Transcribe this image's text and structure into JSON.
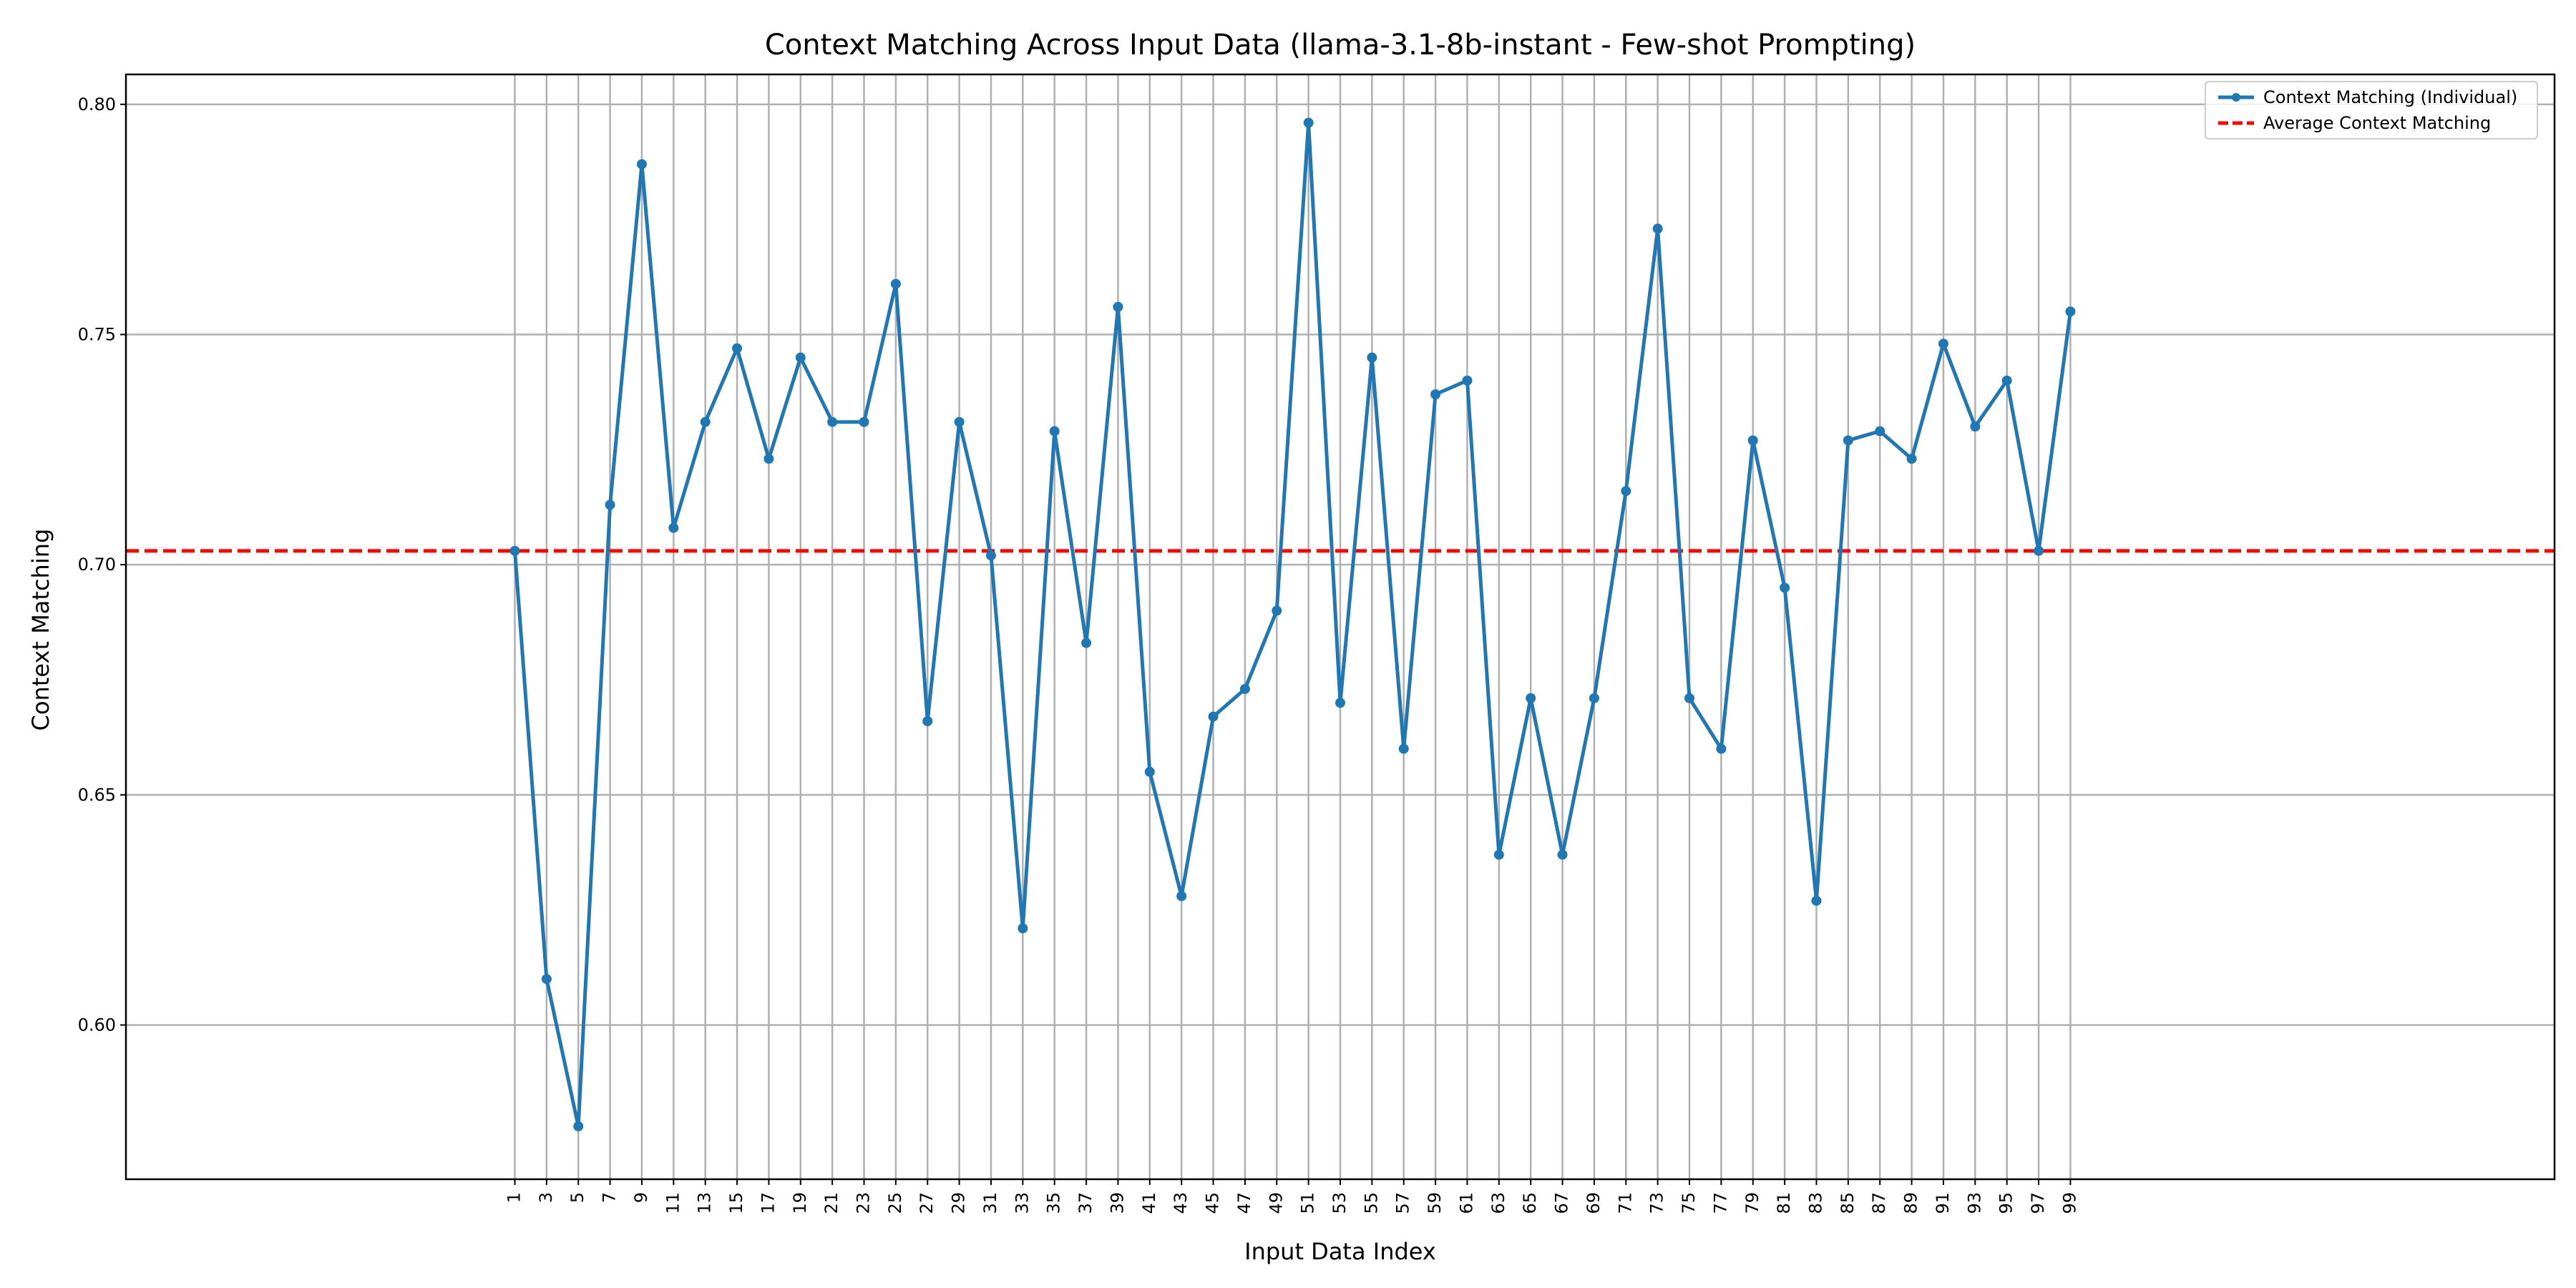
{
  "chart_data": {
    "type": "line",
    "title": "Context Matching Across Input Data (llama-3.1-8b-instant - Few-shot Prompting)",
    "xlabel": "Input Data Index",
    "ylabel": "Context Matching",
    "x": [
      1,
      3,
      5,
      7,
      9,
      11,
      13,
      15,
      17,
      19,
      21,
      23,
      25,
      27,
      29,
      31,
      33,
      35,
      37,
      39,
      41,
      43,
      45,
      47,
      49,
      51,
      53,
      55,
      57,
      59,
      61,
      63,
      65,
      67,
      69,
      71,
      73,
      75,
      77,
      79,
      81,
      83,
      85,
      87,
      89,
      91,
      93,
      95,
      97,
      99
    ],
    "x_ticks": [
      "1",
      "3",
      "5",
      "7",
      "9",
      "11",
      "13",
      "15",
      "17",
      "19",
      "21",
      "23",
      "25",
      "27",
      "29",
      "31",
      "33",
      "35",
      "37",
      "39",
      "41",
      "43",
      "45",
      "47",
      "49",
      "51",
      "53",
      "55",
      "57",
      "59",
      "61",
      "63",
      "65",
      "67",
      "69",
      "71",
      "73",
      "75",
      "77",
      "79",
      "81",
      "83",
      "85",
      "87",
      "89",
      "91",
      "93",
      "95",
      "97",
      "99"
    ],
    "y_ticks": [
      "0.60",
      "0.65",
      "0.70",
      "0.75",
      "0.80"
    ],
    "y_tick_values": [
      0.6,
      0.65,
      0.7,
      0.75,
      0.8
    ],
    "xlim": [
      -23.5,
      129.5
    ],
    "ylim": [
      0.5665,
      0.8065
    ],
    "grid": true,
    "legend_position": "top-right",
    "series": [
      {
        "name": "Context Matching (Individual)",
        "color": "#1f77b4",
        "values": [
          0.703,
          0.61,
          0.578,
          0.713,
          0.787,
          0.708,
          0.731,
          0.747,
          0.723,
          0.745,
          0.731,
          0.731,
          0.761,
          0.666,
          0.731,
          0.702,
          0.621,
          0.729,
          0.683,
          0.756,
          0.655,
          0.628,
          0.667,
          0.673,
          0.69,
          0.796,
          0.67,
          0.745,
          0.66,
          0.737,
          0.74,
          0.637,
          0.671,
          0.637,
          0.671,
          0.716,
          0.773,
          0.671,
          0.66,
          0.727,
          0.695,
          0.627,
          0.727,
          0.729,
          0.723,
          0.748,
          0.73,
          0.74,
          0.703,
          0.755
        ]
      }
    ],
    "reference_lines": [
      {
        "name": "Average Context Matching",
        "value": 0.703,
        "color": "#ff0000",
        "style": "dashed"
      }
    ]
  }
}
